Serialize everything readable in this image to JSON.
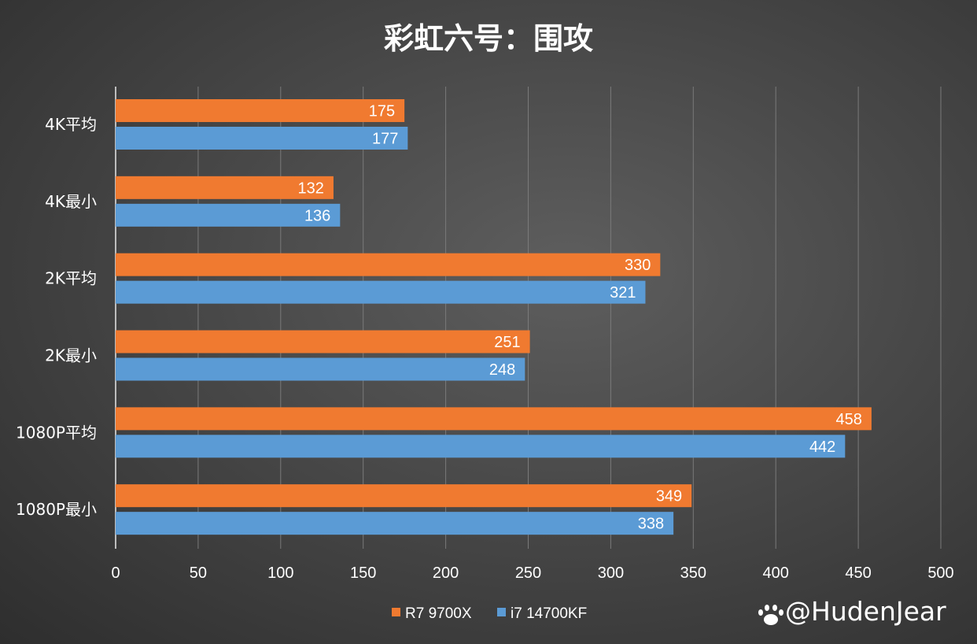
{
  "chart_data": {
    "type": "bar",
    "orientation": "horizontal",
    "title": "彩虹六号：围攻",
    "categories": [
      "4K平均",
      "4K最小",
      "2K平均",
      "2K最小",
      "1080P平均",
      "1080P最小"
    ],
    "series": [
      {
        "name": "R7 9700X",
        "color": "#f07a30",
        "values": [
          175,
          132,
          330,
          251,
          458,
          349
        ]
      },
      {
        "name": "i7 14700KF",
        "color": "#5b9bd5",
        "values": [
          177,
          136,
          321,
          248,
          442,
          338
        ]
      }
    ],
    "xlim": [
      0,
      500
    ],
    "xticks": [
      0,
      50,
      100,
      150,
      200,
      250,
      300,
      350,
      400,
      450,
      500
    ],
    "grid": true,
    "legend": "bottom",
    "xlabel": "",
    "ylabel": ""
  },
  "watermark": {
    "text": "@HudenJear",
    "icon": "paw-icon"
  }
}
